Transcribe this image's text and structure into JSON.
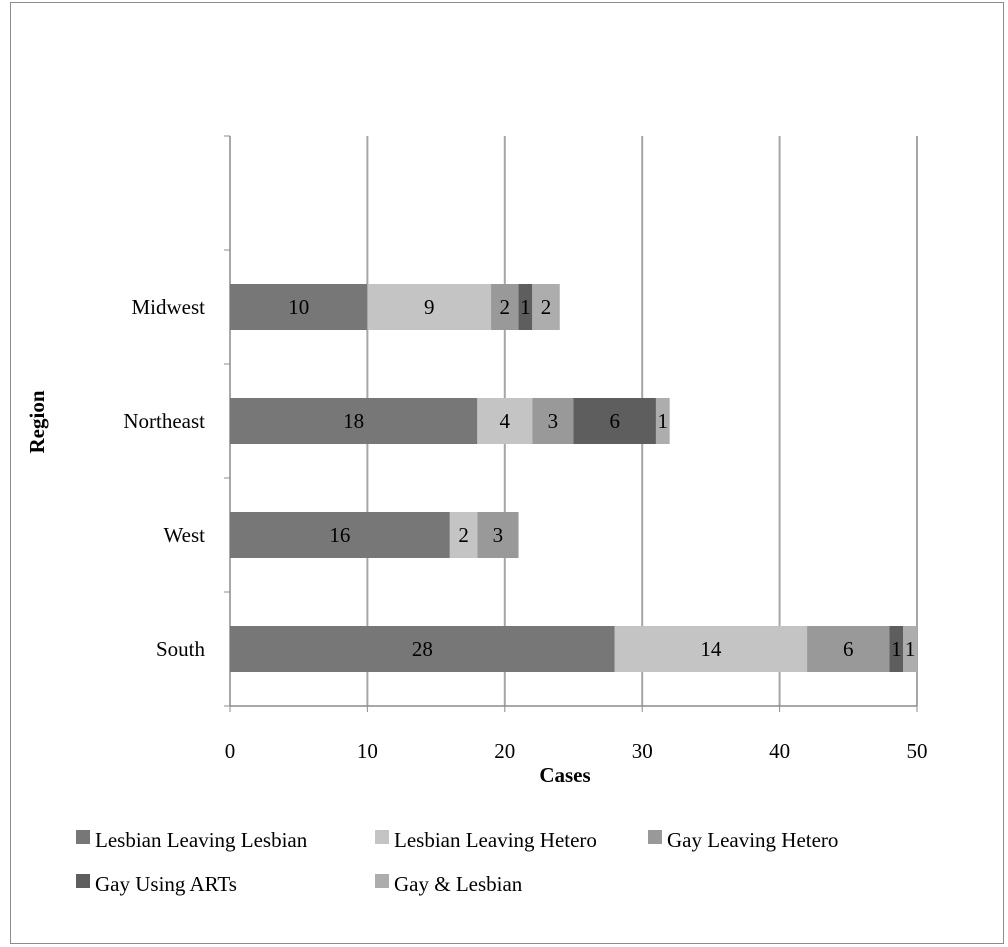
{
  "chart_data": {
    "type": "bar",
    "orientation": "horizontal",
    "stacked": true,
    "categories": [
      "Midwest",
      "Northeast",
      "West",
      "South"
    ],
    "series": [
      {
        "name": "Lesbian Leaving Lesbian",
        "values": [
          10,
          18,
          16,
          28
        ],
        "color": "#777777"
      },
      {
        "name": "Lesbian Leaving Hetero",
        "values": [
          9,
          4,
          2,
          14
        ],
        "color": "#c4c4c4"
      },
      {
        "name": "Gay Leaving Hetero",
        "values": [
          2,
          3,
          3,
          6
        ],
        "color": "#999999"
      },
      {
        "name": "Gay Using ARTs",
        "values": [
          1,
          6,
          0,
          1
        ],
        "color": "#5e5e5e"
      },
      {
        "name": "Gay & Lesbian",
        "values": [
          2,
          1,
          0,
          1
        ],
        "color": "#adadad"
      }
    ],
    "data_label_text": {
      "Midwest": [
        "10",
        "9",
        "2",
        "1",
        "2"
      ],
      "Northeast": [
        "18",
        "4",
        "3",
        "6",
        "1"
      ],
      "West": [
        "16",
        "2",
        "3",
        "",
        ""
      ],
      "South": [
        "28",
        "14",
        "6",
        "1",
        "1"
      ]
    },
    "xlabel": "Cases",
    "ylabel": "Region",
    "xlim": [
      0,
      50
    ],
    "xticks": [
      "0",
      "10",
      "20",
      "30",
      "40",
      "50"
    ],
    "grid": "vertical",
    "legend_position": "bottom"
  }
}
